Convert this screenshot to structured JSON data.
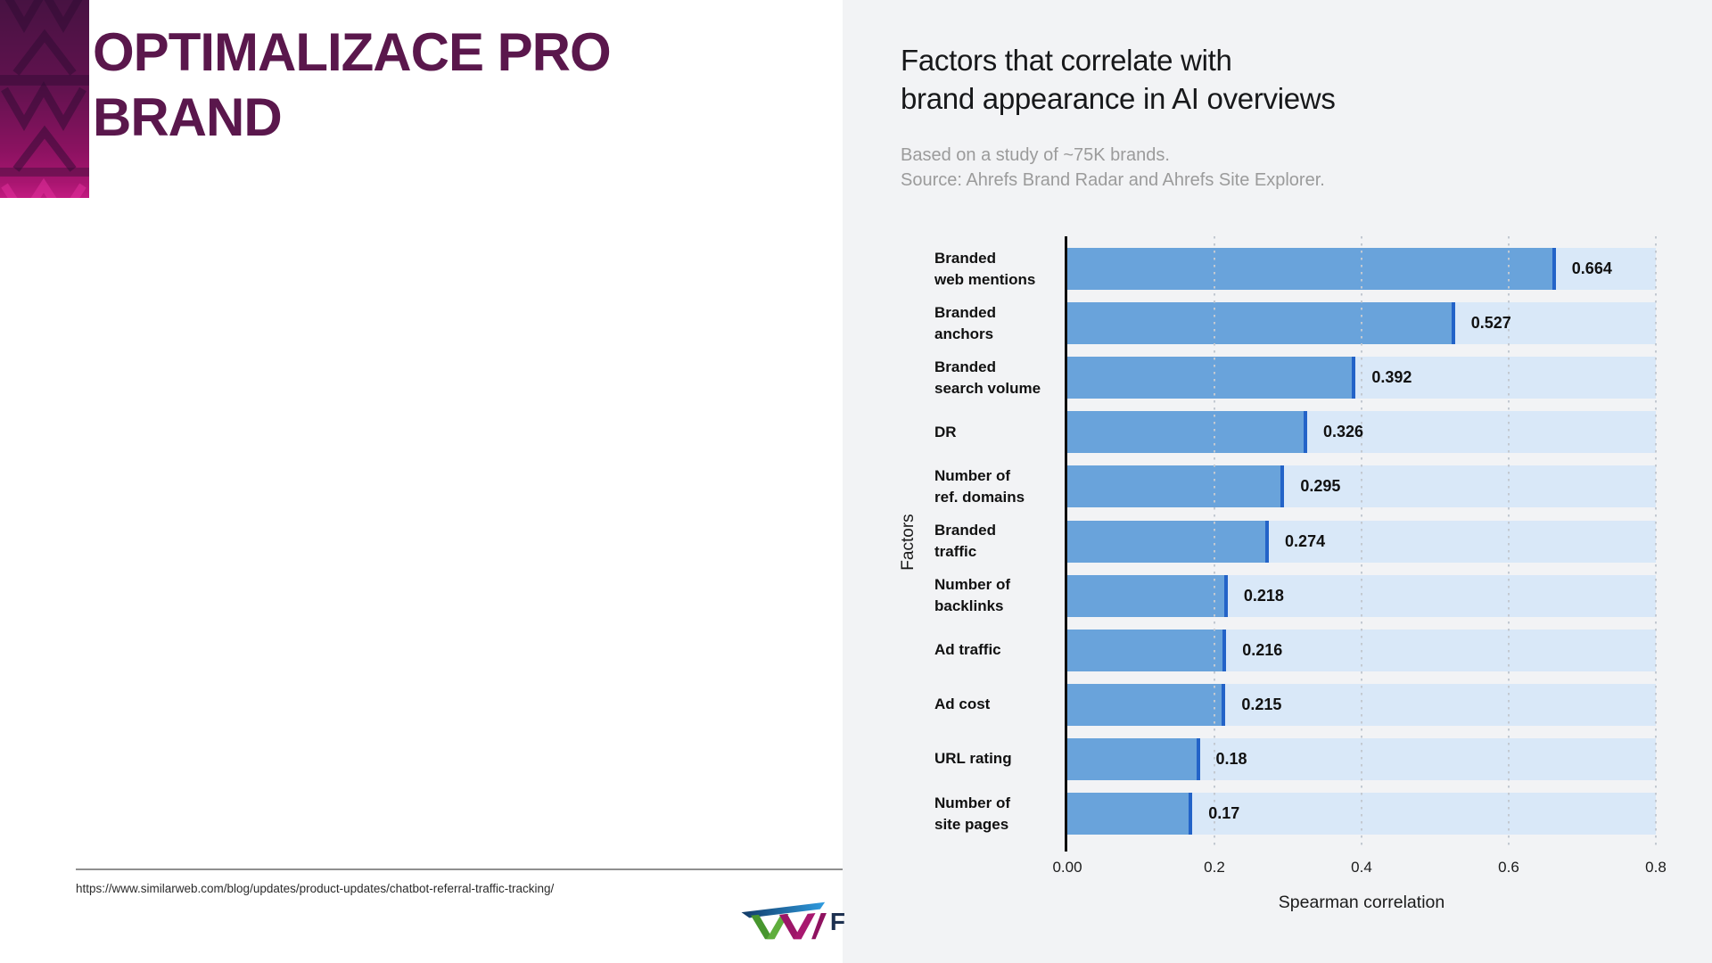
{
  "slide": {
    "title": "OPTIMALIZACE PRO\nBRAND",
    "source_url": "https://www.similarweb.com/blog/updates/product-updates/chatbot-referral-traffic-tracking/",
    "logo": {
      "icon": "w-brand-logo",
      "partial_text": "F"
    }
  },
  "chart": {
    "title": "Factors that correlate with\nbrand appearance in AI overviews",
    "subtitle": "Based on a study of ~75K brands.\nSource: Ahrefs Brand Radar and Ahrefs Site Explorer."
  },
  "chart_data": {
    "type": "bar",
    "orientation": "horizontal",
    "title": "Factors that correlate with brand appearance in AI overviews",
    "subtitle": "Based on a study of ~75K brands. Source: Ahrefs Brand Radar and Ahrefs Site Explorer.",
    "xlabel": "Spearman correlation",
    "ylabel": "Factors",
    "xlim": [
      0,
      0.8
    ],
    "grid": "dotted-vertical",
    "legend": "none",
    "xticks": [
      {
        "value": 0.0,
        "label": "0.00"
      },
      {
        "value": 0.2,
        "label": "0.2"
      },
      {
        "value": 0.4,
        "label": "0.4"
      },
      {
        "value": 0.6,
        "label": "0.6"
      },
      {
        "value": 0.8,
        "label": "0.8"
      }
    ],
    "categories": [
      "Branded\nweb mentions",
      "Branded\nanchors",
      "Branded\nsearch volume",
      "DR",
      "Number of\nref. domains",
      "Branded\ntraffic",
      "Number of\nbacklinks",
      "Ad traffic",
      "Ad cost",
      "URL rating",
      "Number of\nsite pages"
    ],
    "values": [
      0.664,
      0.527,
      0.392,
      0.326,
      0.295,
      0.274,
      0.218,
      0.216,
      0.215,
      0.18,
      0.17
    ],
    "value_labels": [
      "0.664",
      "0.527",
      "0.392",
      "0.326",
      "0.295",
      "0.274",
      "0.218",
      "0.216",
      "0.215",
      "0.18",
      "0.17"
    ],
    "colors": {
      "bar": "#69a3db",
      "bar_edge": "#2363c8",
      "track": "#d9e8f8",
      "panel": "#f2f3f5",
      "grid_dot": "#c3c9d1",
      "title_accent": "#5a174c"
    }
  }
}
